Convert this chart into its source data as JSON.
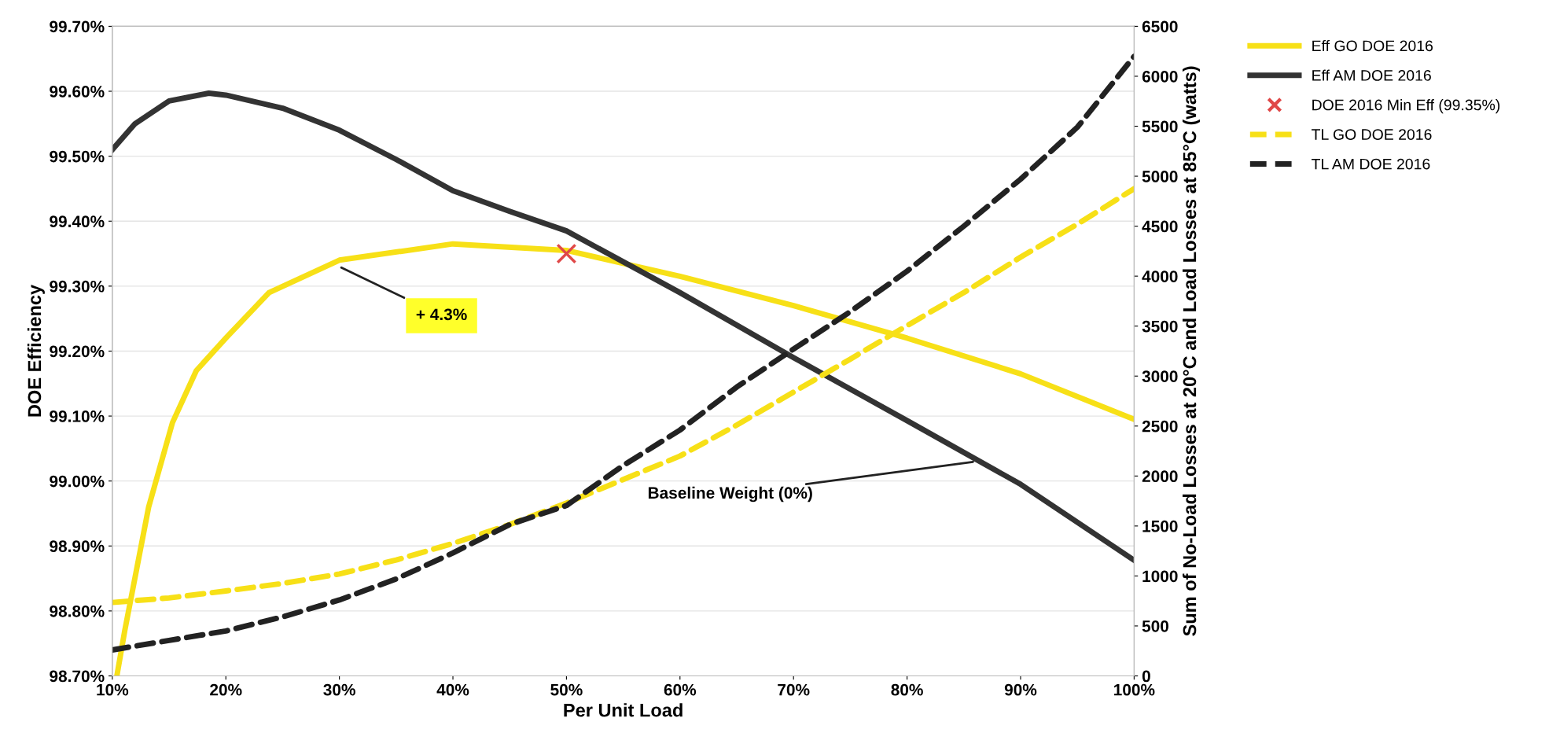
{
  "chart_data": {
    "type": "line",
    "xlabel": "Per Unit Load",
    "ylabel": "DOE Efficiency",
    "y2label": "Sum of No-Load Losses at 20°C and Load Losses at 85°C (watts)",
    "xlim": [
      10,
      100
    ],
    "xticks": [
      {
        "value": 10,
        "label": "10%"
      },
      {
        "value": 20,
        "label": "20%"
      },
      {
        "value": 30,
        "label": "30%"
      },
      {
        "value": 40,
        "label": "40%"
      },
      {
        "value": 50,
        "label": "50%"
      },
      {
        "value": 60,
        "label": "60%"
      },
      {
        "value": 70,
        "label": "70%"
      },
      {
        "value": 80,
        "label": "80%"
      },
      {
        "value": 90,
        "label": "90%"
      },
      {
        "value": 100,
        "label": "100%"
      }
    ],
    "ylim": [
      98.7,
      99.7
    ],
    "yticks": [
      {
        "value": 98.7,
        "label": "98.70%"
      },
      {
        "value": 98.8,
        "label": "98.80%"
      },
      {
        "value": 98.9,
        "label": "98.90%"
      },
      {
        "value": 99.0,
        "label": "99.00%"
      },
      {
        "value": 99.1,
        "label": "99.10%"
      },
      {
        "value": 99.2,
        "label": "99.20%"
      },
      {
        "value": 99.3,
        "label": "99.30%"
      },
      {
        "value": 99.4,
        "label": "99.40%"
      },
      {
        "value": 99.5,
        "label": "99.50%"
      },
      {
        "value": 99.6,
        "label": "99.60%"
      },
      {
        "value": 99.7,
        "label": "99.70%"
      }
    ],
    "y2lim": [
      0,
      6500
    ],
    "y2ticks": [
      0,
      500,
      1000,
      1500,
      2000,
      2500,
      3000,
      3500,
      4000,
      4500,
      5000,
      5500,
      6000,
      6500
    ],
    "grid": "y",
    "legend": "top right",
    "series": [
      {
        "name": "Eff GO DOE 2016",
        "color": "#f7e017",
        "line_style": "solid",
        "x": [
          10.4,
          11.1,
          13.2,
          15.3,
          17.4,
          20,
          23.8,
          30,
          40,
          50,
          60,
          70,
          80,
          90,
          100
        ],
        "values": [
          98.7,
          98.77,
          98.96,
          99.09,
          99.17,
          99.22,
          99.29,
          99.34,
          99.365,
          99.355,
          99.315,
          99.27,
          99.22,
          99.165,
          99.095
        ]
      },
      {
        "name": "Eff AM DOE 2016",
        "color": "#333333",
        "line_style": "solid",
        "x": [
          10,
          12,
          15,
          18.5,
          20,
          25,
          30,
          35,
          40,
          45,
          50,
          60,
          70,
          80,
          90,
          100
        ],
        "values": [
          99.51,
          99.55,
          99.585,
          99.597,
          99.594,
          99.574,
          99.54,
          99.495,
          99.447,
          99.415,
          99.385,
          99.29,
          99.19,
          99.093,
          98.995,
          98.878
        ]
      },
      {
        "name": "DOE 2016 Min Eff (99.35%)",
        "type": "scatter",
        "color": "#e04848",
        "marker": "cross",
        "x": [
          50
        ],
        "values": [
          99.35
        ]
      },
      {
        "name": "TL GO DOE 2016",
        "axis": "y2",
        "color": "#f7e017",
        "line_style": "dashed",
        "x": [
          10,
          15,
          20,
          25,
          30,
          35,
          40,
          45,
          50,
          55,
          60,
          65,
          70,
          75,
          80,
          85,
          90,
          95,
          100
        ],
        "values": [
          735,
          780,
          850,
          925,
          1020,
          1160,
          1325,
          1515,
          1730,
          1965,
          2200,
          2510,
          2840,
          3170,
          3505,
          3835,
          4190,
          4520,
          4875
        ]
      },
      {
        "name": "TL AM DOE 2016",
        "axis": "y2",
        "color": "#222222",
        "line_style": "dashed",
        "x": [
          10,
          15,
          20,
          25,
          30,
          35,
          40,
          45,
          50,
          55,
          60,
          65,
          70,
          75,
          80,
          85,
          90,
          95,
          100
        ],
        "values": [
          260,
          355,
          450,
          590,
          760,
          970,
          1230,
          1515,
          1705,
          2105,
          2460,
          2890,
          3270,
          3645,
          4050,
          4500,
          4970,
          5490,
          6200
        ]
      }
    ],
    "annotations": [
      {
        "text": "+ 4.3%",
        "x": 30,
        "y": 99.33
      },
      {
        "text": "Baseline Weight (0%)",
        "x": 86,
        "y": 99.03
      }
    ]
  }
}
